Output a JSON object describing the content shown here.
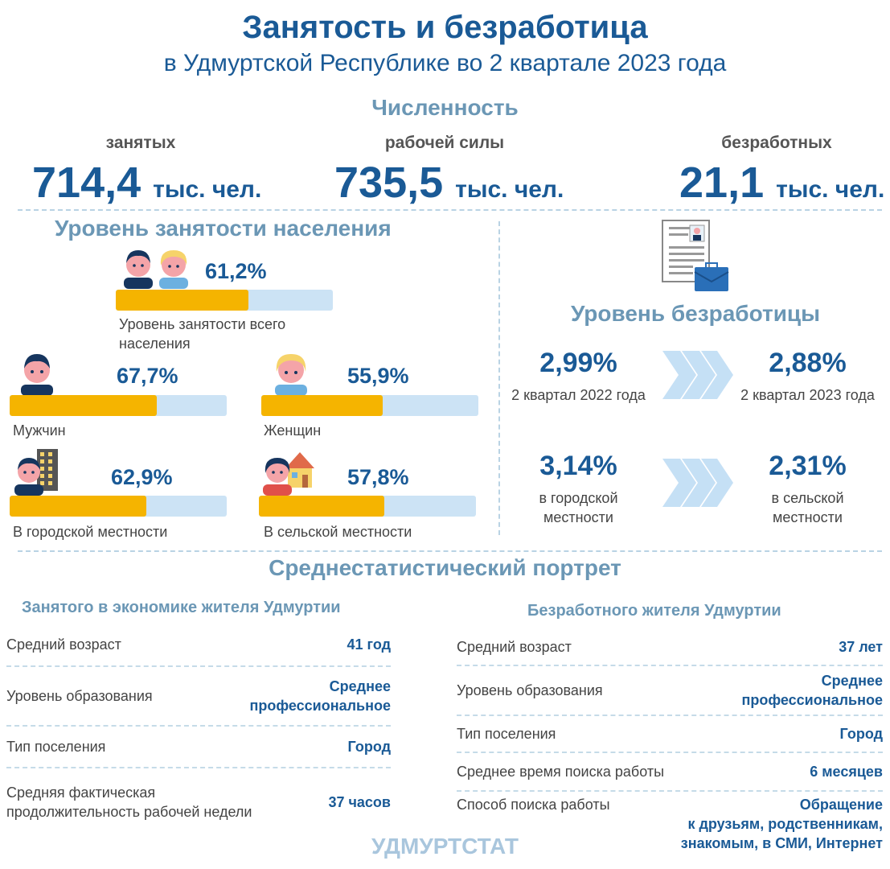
{
  "header": {
    "title": "Занятость и безработица",
    "subtitle": "в Удмуртской Республике во 2 квартале 2023 года"
  },
  "numbers": {
    "heading": "Численность",
    "items": [
      {
        "label": "занятых",
        "value": "714,4",
        "unit": "тыс. чел."
      },
      {
        "label": "рабочей силы",
        "value": "735,5",
        "unit": "тыс. чел."
      },
      {
        "label": "безработных",
        "value": "21,1",
        "unit": "тыс. чел."
      }
    ]
  },
  "employment": {
    "heading": "Уровень занятости населения",
    "total": {
      "pct": "61,2%",
      "value": 61.2,
      "label_line1": "Уровень занятости всего",
      "label_line2": "населения"
    },
    "men": {
      "pct": "67,7%",
      "value": 67.7,
      "label": "Мужчин"
    },
    "women": {
      "pct": "55,9%",
      "value": 55.9,
      "label": "Женщин"
    },
    "urban": {
      "pct": "62,9%",
      "value": 62.9,
      "label": "В городской местности"
    },
    "rural": {
      "pct": "57,8%",
      "value": 57.8,
      "label": "В сельской местности"
    }
  },
  "unemployment": {
    "heading": "Уровень безработицы",
    "q2022": {
      "pct": "2,99%",
      "label": "2 квартал 2022 года"
    },
    "q2023": {
      "pct": "2,88%",
      "label": "2 квартал 2023 года"
    },
    "urban": {
      "pct": "3,14%",
      "label_line1": "в городской",
      "label_line2": "местности"
    },
    "rural": {
      "pct": "2,31%",
      "label_line1": "в сельской",
      "label_line2": "местности"
    }
  },
  "portrait": {
    "heading": "Среднестатистический портрет",
    "employed": {
      "heading": "Занятого в экономике жителя Удмуртии",
      "rows": [
        {
          "k1": "Средний возраст",
          "k2": "",
          "v1": "41 год",
          "v2": ""
        },
        {
          "k1": "Уровень образования",
          "k2": "",
          "v1": "Среднее",
          "v2": "профессиональное"
        },
        {
          "k1": "Тип поселения",
          "k2": "",
          "v1": "Город",
          "v2": ""
        },
        {
          "k1": "Средняя фактическая",
          "k2": "продолжительность рабочей недели",
          "v1": "37 часов",
          "v2": ""
        }
      ]
    },
    "unemployed": {
      "heading": "Безработного жителя Удмуртии",
      "rows": [
        {
          "k1": "Средний возраст",
          "v1": "37 лет",
          "v2": "",
          "v3": ""
        },
        {
          "k1": "Уровень образования",
          "v1": "Среднее",
          "v2": "профессиональное",
          "v3": ""
        },
        {
          "k1": "Тип поселения",
          "v1": "Город",
          "v2": "",
          "v3": ""
        },
        {
          "k1": "Среднее время поиска работы",
          "v1": "6 месяцев",
          "v2": "",
          "v3": ""
        },
        {
          "k1": "Способ поиска работы",
          "v1": "Обращение",
          "v2": "к друзьям, родственникам,",
          "v3": "знакомым, в СМИ, Интернет"
        }
      ]
    }
  },
  "footer": {
    "text": "УДМУРТСТАТ"
  },
  "colors": {
    "accent": "#1a5a96",
    "heading": "#6b97b5",
    "bar_fill": "#f5b400",
    "bar_bg": "#cce3f5",
    "chevron": "#c5e0f5"
  },
  "icons": [
    "people-icon",
    "man-icon",
    "woman-icon",
    "city-man-icon",
    "village-woman-icon",
    "resume-briefcase-icon",
    "chevron-arrow-icon"
  ]
}
